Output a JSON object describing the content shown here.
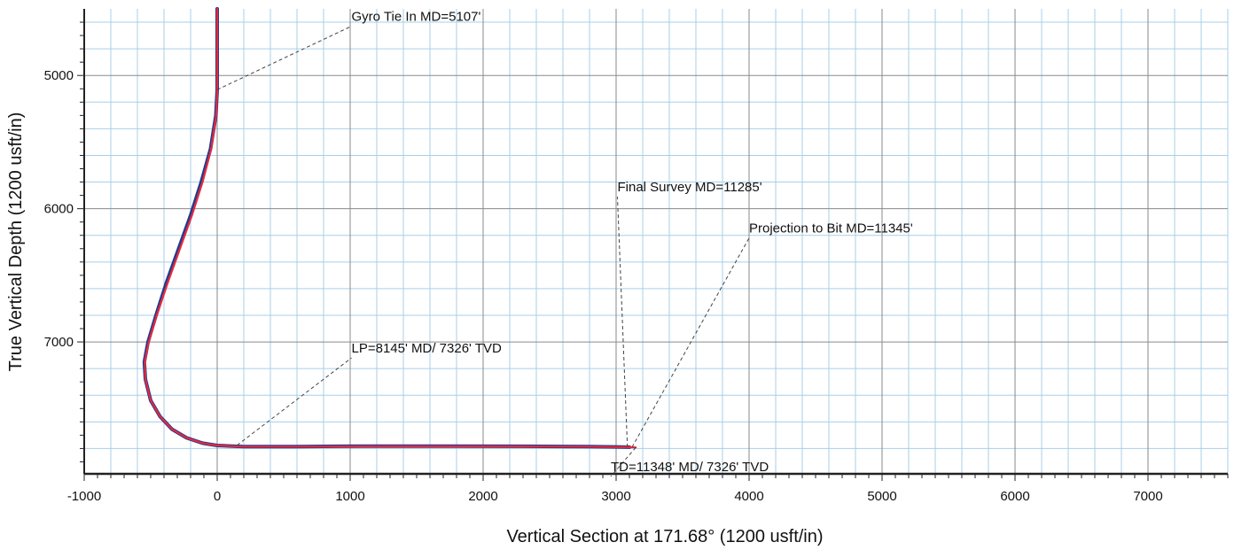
{
  "chart_data": {
    "type": "line",
    "xlabel": "Vertical Section at 171.68° (1200 usft/in)",
    "ylabel": "True Vertical Depth (1200 usft/in)",
    "xlim": [
      -1000,
      7600
    ],
    "ylim": [
      4500,
      7990
    ],
    "y_inverted": true,
    "grid": true,
    "x_ticks": [
      -1000,
      0,
      1000,
      2000,
      3000,
      4000,
      5000,
      6000,
      7000
    ],
    "x_tick_labels": [
      "-1000",
      "0",
      "1000",
      "2000",
      "3000",
      "4000",
      "5000",
      "6000",
      "7000"
    ],
    "y_ticks": [
      5000,
      6000,
      7000
    ],
    "y_tick_labels": [
      "5000",
      "6000",
      "7000"
    ],
    "series": [
      {
        "color": "#1f3c8f",
        "x": [
          0,
          0,
          0,
          -10,
          -50,
          -120,
          -200,
          -290,
          -380,
          -460,
          -520,
          -548,
          -540,
          -500,
          -430,
          -340,
          -230,
          -110,
          0,
          200,
          600,
          1100,
          1700,
          2300,
          2800,
          3000,
          3100
        ],
        "y": [
          4500,
          5000,
          5107,
          5300,
          5550,
          5800,
          6050,
          6300,
          6550,
          6800,
          7000,
          7150,
          7280,
          7440,
          7560,
          7655,
          7720,
          7760,
          7777,
          7785,
          7785,
          7782,
          7782,
          7783,
          7785,
          7788,
          7790
        ]
      },
      {
        "color": "#e8283c",
        "x": [
          0,
          0,
          0,
          -8,
          -45,
          -110,
          -190,
          -280,
          -370,
          -455,
          -515,
          -545,
          -540,
          -500,
          -430,
          -340,
          -230,
          -110,
          0,
          200,
          600,
          1100,
          1700,
          2300,
          2800,
          3000,
          3100,
          3148
        ],
        "y": [
          4500,
          5000,
          5107,
          5300,
          5550,
          5800,
          6050,
          6300,
          6550,
          6800,
          7000,
          7150,
          7280,
          7440,
          7560,
          7655,
          7720,
          7760,
          7777,
          7786,
          7786,
          7784,
          7784,
          7784,
          7786,
          7789,
          7790,
          7792
        ]
      }
    ],
    "annotations": [
      {
        "text": "Gyro Tie In MD=5107'",
        "point": [
          0,
          5107
        ],
        "label_at": [
          1010,
          4590
        ]
      },
      {
        "text": "Final Survey MD=11285'",
        "point": [
          3085,
          7790
        ],
        "label_at": [
          3010,
          5870
        ]
      },
      {
        "text": "Projection to Bit MD=11345'",
        "point": [
          3120,
          7790
        ],
        "label_at": [
          4000,
          6180
        ]
      },
      {
        "text": "LP=8145' MD/ 7326' TVD",
        "point": [
          150,
          7775
        ],
        "label_at": [
          1010,
          7080
        ]
      },
      {
        "text": "TD=11348' MD/ 7326' TVD",
        "point": [
          3148,
          7792
        ],
        "label_at": [
          2960,
          7970
        ]
      }
    ],
    "colors": {
      "grid_major": "#8a8a8a",
      "grid_minor": "#a9cfe6",
      "axis": "#222222"
    }
  }
}
